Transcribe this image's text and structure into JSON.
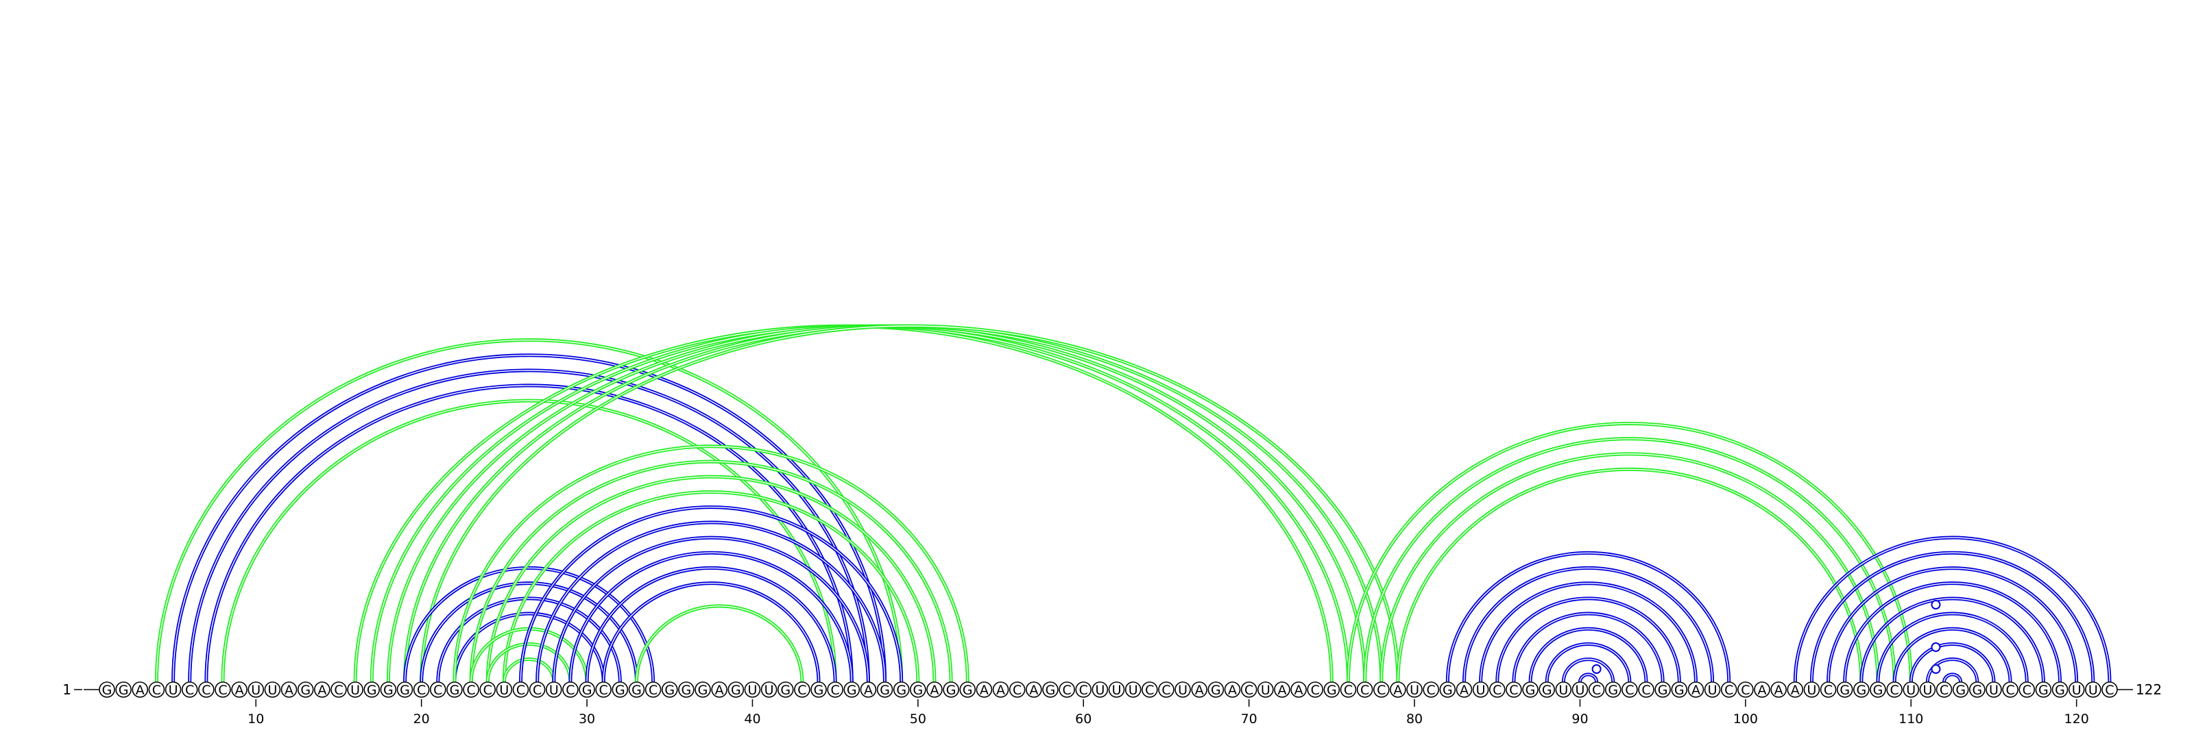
{
  "sequence": "GGACUCCCAUUAGACUGGGCCGCCUCCUCGCGGCGGGAGUUGCGCGAGGGAGGAACAGCCUUUCCUAGACUAACGCCCAUCGAUCCGGUUCGCCGGAUCCAAAUCGGGCUUCGGUCCGGUUC",
  "start_label": "1",
  "end_label": "122",
  "ticks": [
    10,
    20,
    30,
    40,
    50,
    60,
    70,
    80,
    90,
    100,
    110,
    120
  ],
  "colors": {
    "blue": "#0000dd",
    "green": "#22ee22"
  },
  "pairs": [
    {
      "i": 4,
      "j": 49,
      "color": "green"
    },
    {
      "i": 5,
      "j": 48,
      "color": "blue"
    },
    {
      "i": 6,
      "j": 47,
      "color": "blue"
    },
    {
      "i": 7,
      "j": 46,
      "color": "blue"
    },
    {
      "i": 8,
      "j": 45,
      "color": "green"
    },
    {
      "i": 16,
      "j": 75,
      "color": "green"
    },
    {
      "i": 17,
      "j": 76,
      "color": "green"
    },
    {
      "i": 18,
      "j": 77,
      "color": "green"
    },
    {
      "i": 19,
      "j": 78,
      "color": "green"
    },
    {
      "i": 20,
      "j": 79,
      "color": "green"
    },
    {
      "i": 19,
      "j": 34,
      "color": "blue"
    },
    {
      "i": 20,
      "j": 33,
      "color": "blue"
    },
    {
      "i": 21,
      "j": 32,
      "color": "blue"
    },
    {
      "i": 22,
      "j": 31,
      "color": "blue"
    },
    {
      "i": 22,
      "j": 53,
      "color": "green"
    },
    {
      "i": 23,
      "j": 52,
      "color": "green"
    },
    {
      "i": 24,
      "j": 51,
      "color": "green"
    },
    {
      "i": 25,
      "j": 50,
      "color": "green"
    },
    {
      "i": 23,
      "j": 30,
      "color": "green"
    },
    {
      "i": 24,
      "j": 29,
      "color": "green"
    },
    {
      "i": 25,
      "j": 28,
      "color": "green"
    },
    {
      "i": 26,
      "j": 49,
      "color": "blue"
    },
    {
      "i": 27,
      "j": 48,
      "color": "blue"
    },
    {
      "i": 28,
      "j": 47,
      "color": "blue"
    },
    {
      "i": 29,
      "j": 46,
      "color": "blue"
    },
    {
      "i": 30,
      "j": 45,
      "color": "blue"
    },
    {
      "i": 31,
      "j": 44,
      "color": "blue"
    },
    {
      "i": 33,
      "j": 43,
      "color": "green"
    },
    {
      "i": 82,
      "j": 99,
      "color": "blue"
    },
    {
      "i": 83,
      "j": 98,
      "color": "blue"
    },
    {
      "i": 84,
      "j": 97,
      "color": "blue"
    },
    {
      "i": 85,
      "j": 96,
      "color": "blue"
    },
    {
      "i": 86,
      "j": 95,
      "color": "blue"
    },
    {
      "i": 87,
      "j": 94,
      "color": "blue"
    },
    {
      "i": 88,
      "j": 93,
      "color": "blue"
    },
    {
      "i": 89,
      "j": 92,
      "color": "blue"
    },
    {
      "i": 90,
      "j": 91,
      "color": "blue"
    },
    {
      "i": 76,
      "j": 110,
      "color": "green"
    },
    {
      "i": 77,
      "j": 109,
      "color": "green"
    },
    {
      "i": 78,
      "j": 108,
      "color": "green"
    },
    {
      "i": 79,
      "j": 107,
      "color": "green"
    },
    {
      "i": 103,
      "j": 122,
      "color": "blue"
    },
    {
      "i": 104,
      "j": 121,
      "color": "blue"
    },
    {
      "i": 105,
      "j": 120,
      "color": "blue"
    },
    {
      "i": 106,
      "j": 119,
      "color": "blue"
    },
    {
      "i": 107,
      "j": 118,
      "color": "blue"
    },
    {
      "i": 108,
      "j": 117,
      "color": "blue"
    },
    {
      "i": 109,
      "j": 116,
      "color": "blue"
    },
    {
      "i": 110,
      "j": 115,
      "color": "blue"
    },
    {
      "i": 111,
      "j": 114,
      "color": "blue"
    },
    {
      "i": 112,
      "j": 113,
      "color": "blue"
    }
  ],
  "markers": [
    91,
    111.5
  ]
}
